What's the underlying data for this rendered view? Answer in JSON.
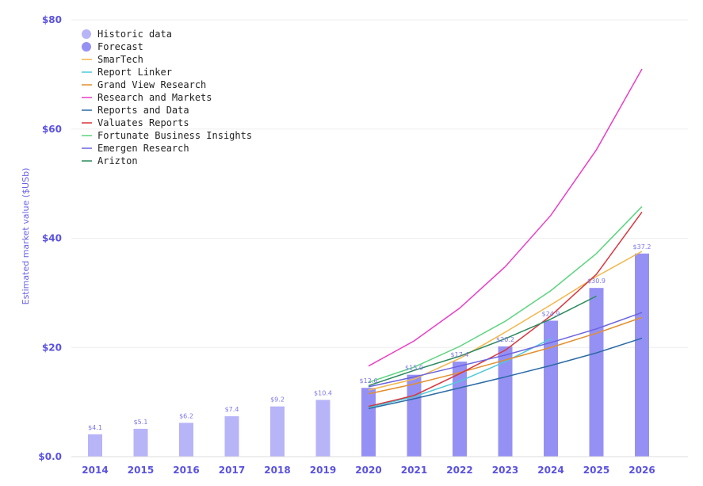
{
  "chart_data": {
    "type": "bar",
    "ylabel": "Estimated market value ($USb)",
    "ylim": [
      0,
      80
    ],
    "y_ticks": [
      {
        "value": 0,
        "label": "$0.0"
      },
      {
        "value": 20,
        "label": "$20"
      },
      {
        "value": 40,
        "label": "$40"
      },
      {
        "value": 60,
        "label": "$60"
      },
      {
        "value": 80,
        "label": "$80"
      }
    ],
    "grid": true,
    "legend_position": "top-left",
    "categories": [
      "2014",
      "2015",
      "2016",
      "2017",
      "2018",
      "2019",
      "2020",
      "2021",
      "2022",
      "2023",
      "2024",
      "2025",
      "2026"
    ],
    "bars": [
      {
        "name": "Historic data",
        "color": "#b7b4f8",
        "values": [
          4.1,
          5.1,
          6.2,
          7.4,
          9.2,
          10.4,
          null,
          null,
          null,
          null,
          null,
          null,
          null
        ]
      },
      {
        "name": "Forecast",
        "color": "#9591f4",
        "values": [
          null,
          null,
          null,
          null,
          null,
          null,
          12.6,
          15.0,
          17.4,
          20.2,
          24.9,
          30.9,
          37.2
        ]
      }
    ],
    "bar_labels": [
      "$4.1",
      "$5.1",
      "$6.2",
      "$7.4",
      "$9.2",
      "$10.4",
      "$12.6",
      "$15.0",
      "$17.4",
      "$20.2",
      "$24.9",
      "$30.9",
      "$37.2"
    ],
    "series": [
      {
        "name": "SmarTech",
        "color": "#f2b64a",
        "x": [
          "2020",
          "2021",
          "2022",
          "2023",
          "2024",
          "2025",
          "2026"
        ],
        "values": [
          12.2,
          14.2,
          18.0,
          22.8,
          27.8,
          33.0,
          37.6
        ]
      },
      {
        "name": "Report Linker",
        "color": "#4fc8d8",
        "x": [
          "2020",
          "2021",
          "2022",
          "2023",
          "2024"
        ],
        "values": [
          9.0,
          11.0,
          13.8,
          17.4,
          21.6
        ]
      },
      {
        "name": "Grand View Research",
        "color": "#e38f2c",
        "x": [
          "2020",
          "2021",
          "2022",
          "2023",
          "2024",
          "2025",
          "2026"
        ],
        "values": [
          11.5,
          13.3,
          15.4,
          17.7,
          20.0,
          22.6,
          25.5
        ]
      },
      {
        "name": "Research and Markets",
        "color": "#ea3fc6",
        "x": [
          "2020",
          "2021",
          "2022",
          "2023",
          "2024",
          "2025",
          "2026"
        ],
        "values": [
          16.6,
          21.2,
          27.2,
          34.8,
          44.2,
          56.2,
          71.0
        ]
      },
      {
        "name": "Reports and Data",
        "color": "#2a6aa6",
        "x": [
          "2020",
          "2021",
          "2022",
          "2023",
          "2024",
          "2025",
          "2026"
        ],
        "values": [
          8.8,
          10.6,
          12.6,
          14.6,
          16.7,
          19.0,
          21.7
        ]
      },
      {
        "name": "Valuates Reports",
        "color": "#d9363e",
        "x": [
          "2020",
          "2021",
          "2022",
          "2023",
          "2024",
          "2025",
          "2026"
        ],
        "values": [
          9.2,
          11.2,
          15.2,
          19.5,
          25.8,
          33.4,
          44.8
        ]
      },
      {
        "name": "Fortunate Business Insights",
        "color": "#5cd47e",
        "x": [
          "2020",
          "2021",
          "2022",
          "2023",
          "2024",
          "2025",
          "2026"
        ],
        "values": [
          13.6,
          16.4,
          20.2,
          24.8,
          30.4,
          37.2,
          45.8
        ]
      },
      {
        "name": "Emergen Research",
        "color": "#6a62e0",
        "x": [
          "2020",
          "2021",
          "2022",
          "2023",
          "2024",
          "2025",
          "2026"
        ],
        "values": [
          12.8,
          14.6,
          16.6,
          18.6,
          20.9,
          23.4,
          26.4
        ]
      },
      {
        "name": "Arizton",
        "color": "#2b8a5c",
        "x": [
          "2020",
          "2021",
          "2022",
          "2023",
          "2024",
          "2025"
        ],
        "values": [
          13.0,
          15.8,
          18.4,
          21.6,
          25.2,
          29.4
        ]
      }
    ]
  }
}
